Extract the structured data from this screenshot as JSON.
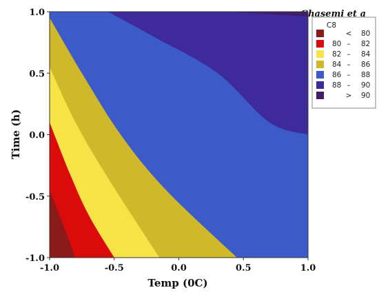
{
  "header_text": "Ghasemi et a",
  "chart_data": {
    "type": "contour",
    "xlabel": "Temp (0C)",
    "ylabel": "Time (h)",
    "xlim": [
      -1.0,
      1.0
    ],
    "ylim": [
      -1.0,
      1.0
    ],
    "xticks": [
      "-1.0",
      "-0.5",
      "0.0",
      "0.5",
      "1.0"
    ],
    "yticks": [
      "-1.0",
      "-0.5",
      "0.0",
      "0.5",
      "1.0"
    ],
    "response": "C8",
    "levels": [
      80,
      82,
      84,
      86,
      88,
      90
    ],
    "legend": {
      "title": "C8",
      "placement": "right",
      "entries": [
        {
          "lower": "",
          "op": "<",
          "upper": "80",
          "color": "#8b1a1a"
        },
        {
          "lower": "80",
          "op": "–",
          "upper": "82",
          "color": "#dc0b0b"
        },
        {
          "lower": "82",
          "op": "–",
          "upper": "84",
          "color": "#f6e447"
        },
        {
          "lower": "84",
          "op": "–",
          "upper": "86",
          "color": "#cfb92a"
        },
        {
          "lower": "86",
          "op": "–",
          "upper": "88",
          "color": "#3d5bc8"
        },
        {
          "lower": "88",
          "op": "–",
          "upper": "90",
          "color": "#3e2a9c"
        },
        {
          "lower": "",
          "op": ">",
          "upper": "90",
          "color": "#421e6a"
        }
      ]
    },
    "boundaries": [
      {
        "level": 80,
        "points": [
          [
            -1.0,
            -0.45
          ],
          [
            -0.9,
            -0.72
          ],
          [
            -0.8,
            -1.0
          ]
        ]
      },
      {
        "level": 82,
        "points": [
          [
            -1.0,
            0.1
          ],
          [
            -0.85,
            -0.3
          ],
          [
            -0.7,
            -0.65
          ],
          [
            -0.5,
            -1.0
          ]
        ]
      },
      {
        "level": 84,
        "points": [
          [
            -1.0,
            0.55
          ],
          [
            -0.8,
            0.1
          ],
          [
            -0.55,
            -0.35
          ],
          [
            -0.15,
            -1.0
          ]
        ]
      },
      {
        "level": 86,
        "points": [
          [
            -1.0,
            0.95
          ],
          [
            -0.75,
            0.5
          ],
          [
            -0.45,
            0.0
          ],
          [
            -0.1,
            -0.45
          ],
          [
            0.45,
            -1.0
          ]
        ]
      },
      {
        "level": 88,
        "points": [
          [
            -0.55,
            1.0
          ],
          [
            -0.2,
            0.8
          ],
          [
            0.3,
            0.5
          ],
          [
            0.7,
            0.1
          ],
          [
            1.0,
            0.0
          ]
        ]
      },
      {
        "level": 90,
        "points": [
          [
            0.35,
            1.0
          ],
          [
            0.7,
            0.98
          ],
          [
            1.0,
            0.96
          ]
        ]
      }
    ]
  }
}
